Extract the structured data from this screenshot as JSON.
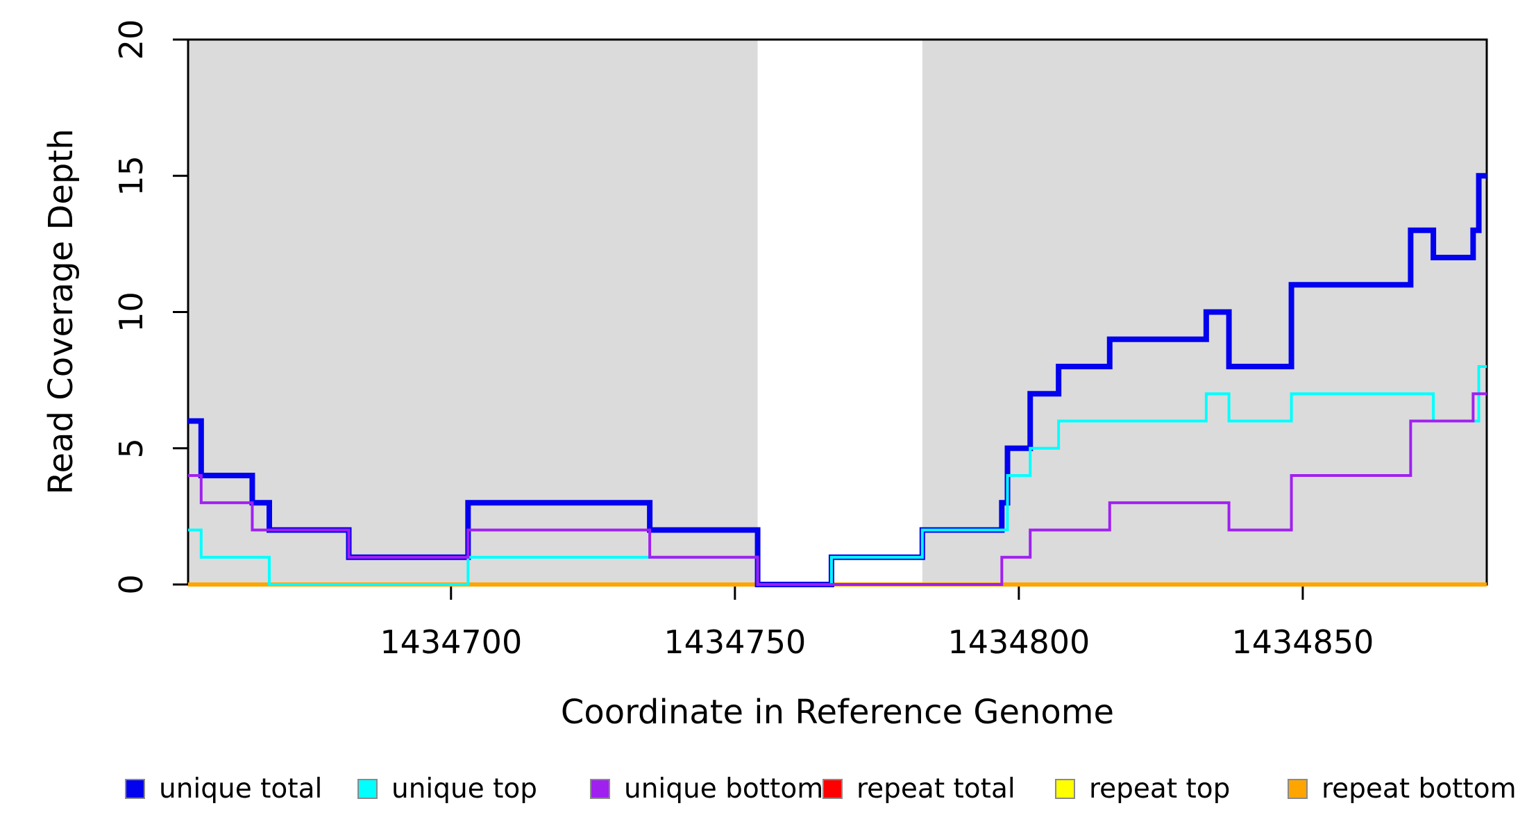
{
  "chart_data": {
    "type": "line",
    "subtype": "step-post",
    "title": "",
    "xlabel": "Coordinate in Reference Genome",
    "ylabel": "Read Coverage Depth",
    "background_color": "#ffffff",
    "shaded_band_color": "#dbdbdb",
    "grid": false,
    "legend_position": "bottom",
    "xlim": [
      1434653.7,
      1434882.4
    ],
    "ylim": [
      0,
      20
    ],
    "xticks": [
      {
        "value": 1434700,
        "label": "1434700"
      },
      {
        "value": 1434750,
        "label": "1434750"
      },
      {
        "value": 1434800,
        "label": "1434800"
      },
      {
        "value": 1434850,
        "label": "1434850"
      }
    ],
    "yticks": [
      {
        "value": 0,
        "label": "0"
      },
      {
        "value": 5,
        "label": "5"
      },
      {
        "value": 10,
        "label": "10"
      },
      {
        "value": 15,
        "label": "15"
      },
      {
        "value": 20,
        "label": "20"
      }
    ],
    "shaded_regions": [
      {
        "x0": 1434653.7,
        "x1": 1434754
      },
      {
        "x0": 1434783,
        "x1": 1434882.4
      }
    ],
    "series": [
      {
        "name": "repeat total",
        "color": "#ff0000",
        "width": 6,
        "steps": [
          [
            1434653.7,
            0
          ]
        ]
      },
      {
        "name": "repeat top",
        "color": "#ffff00",
        "width": 5,
        "steps": [
          [
            1434653.7,
            0
          ]
        ]
      },
      {
        "name": "repeat bottom",
        "color": "#ffa500",
        "width": 6,
        "steps": [
          [
            1434653.7,
            0
          ]
        ]
      },
      {
        "name": "unique total",
        "color": "#0202ee",
        "width": 8,
        "steps": [
          [
            1434653.7,
            6
          ],
          [
            1434656,
            4
          ],
          [
            1434665,
            3
          ],
          [
            1434668,
            2
          ],
          [
            1434682,
            1
          ],
          [
            1434703,
            3
          ],
          [
            1434735,
            2
          ],
          [
            1434754,
            0
          ],
          [
            1434767,
            1
          ],
          [
            1434783,
            2
          ],
          [
            1434797,
            3
          ],
          [
            1434798,
            5
          ],
          [
            1434802,
            7
          ],
          [
            1434807,
            8
          ],
          [
            1434816,
            9
          ],
          [
            1434833,
            10
          ],
          [
            1434837,
            8
          ],
          [
            1434848,
            11
          ],
          [
            1434869,
            13
          ],
          [
            1434873,
            12
          ],
          [
            1434880,
            13
          ],
          [
            1434881,
            15
          ]
        ]
      },
      {
        "name": "unique top",
        "color": "#00ffff",
        "width": 4,
        "steps": [
          [
            1434653.7,
            2
          ],
          [
            1434656,
            1
          ],
          [
            1434668,
            0
          ],
          [
            1434703,
            1
          ],
          [
            1434754,
            0
          ],
          [
            1434767,
            1
          ],
          [
            1434783,
            2
          ],
          [
            1434798,
            4
          ],
          [
            1434802,
            5
          ],
          [
            1434807,
            6
          ],
          [
            1434833,
            7
          ],
          [
            1434837,
            6
          ],
          [
            1434848,
            7
          ],
          [
            1434873,
            6
          ],
          [
            1434881,
            8
          ]
        ]
      },
      {
        "name": "unique bottom",
        "color": "#a020f0",
        "width": 4,
        "steps": [
          [
            1434653.7,
            4
          ],
          [
            1434656,
            3
          ],
          [
            1434665,
            2
          ],
          [
            1434682,
            1
          ],
          [
            1434703,
            2
          ],
          [
            1434735,
            1
          ],
          [
            1434754,
            0
          ],
          [
            1434797,
            1
          ],
          [
            1434802,
            2
          ],
          [
            1434816,
            3
          ],
          [
            1434837,
            2
          ],
          [
            1434848,
            4
          ],
          [
            1434869,
            6
          ],
          [
            1434880,
            7
          ]
        ]
      }
    ],
    "legend": [
      {
        "label": "unique total",
        "color": "#0202ee"
      },
      {
        "label": "unique top",
        "color": "#00ffff"
      },
      {
        "label": "unique bottom",
        "color": "#a020f0"
      },
      {
        "label": "repeat total",
        "color": "#ff0000"
      },
      {
        "label": "repeat top",
        "color": "#ffff00"
      },
      {
        "label": "repeat bottom",
        "color": "#ffa500"
      }
    ]
  }
}
